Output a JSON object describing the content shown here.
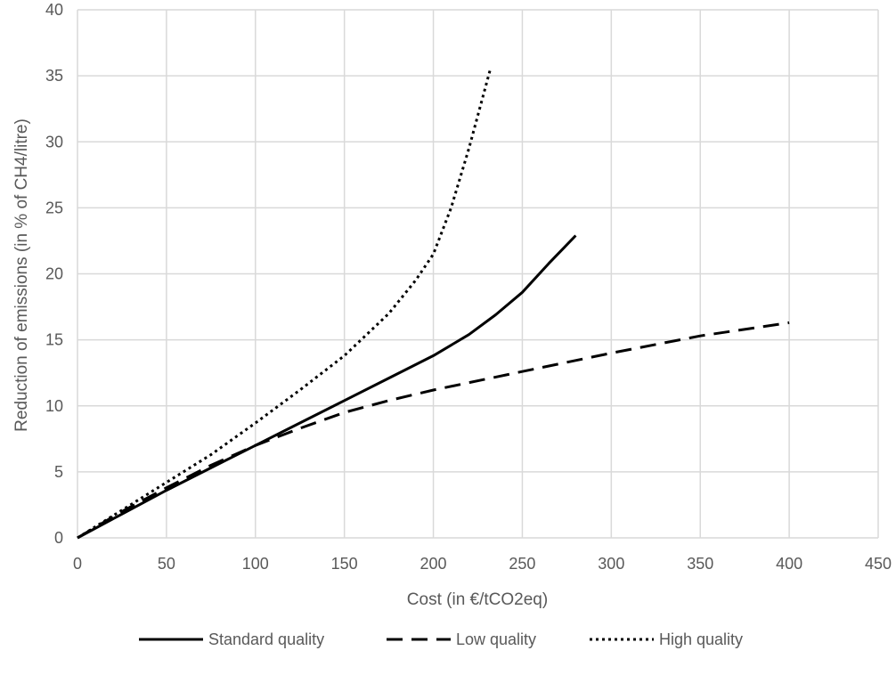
{
  "chart_data": {
    "type": "line",
    "title": "",
    "xlabel": "Cost (in €/tCO2eq)",
    "ylabel": "Reduction of emissions (in % of CH4/litre)",
    "xlim": [
      0,
      450
    ],
    "ylim": [
      0,
      40
    ],
    "x_ticks": [
      0,
      50,
      100,
      150,
      200,
      250,
      300,
      350,
      400,
      450
    ],
    "y_ticks": [
      0,
      5,
      10,
      15,
      20,
      25,
      30,
      35,
      40
    ],
    "grid": true,
    "legend_position": "bottom",
    "series": [
      {
        "name": "Standard quality",
        "style": "solid",
        "color": "#000000",
        "points": [
          [
            0,
            0
          ],
          [
            25,
            1.8
          ],
          [
            50,
            3.6
          ],
          [
            75,
            5.3
          ],
          [
            100,
            7.0
          ],
          [
            125,
            8.7
          ],
          [
            150,
            10.4
          ],
          [
            175,
            12.1
          ],
          [
            200,
            13.8
          ],
          [
            220,
            15.4
          ],
          [
            235,
            16.9
          ],
          [
            250,
            18.6
          ],
          [
            265,
            20.8
          ],
          [
            280,
            22.9
          ]
        ]
      },
      {
        "name": "Low quality",
        "style": "dashed",
        "color": "#000000",
        "points": [
          [
            0,
            0
          ],
          [
            25,
            2.0
          ],
          [
            50,
            3.8
          ],
          [
            75,
            5.5
          ],
          [
            100,
            7.0
          ],
          [
            125,
            8.3
          ],
          [
            150,
            9.5
          ],
          [
            175,
            10.4
          ],
          [
            200,
            11.2
          ],
          [
            250,
            12.6
          ],
          [
            300,
            14.0
          ],
          [
            350,
            15.3
          ],
          [
            400,
            16.3
          ]
        ]
      },
      {
        "name": "High quality",
        "style": "dotted",
        "color": "#000000",
        "points": [
          [
            0,
            0
          ],
          [
            25,
            2.1
          ],
          [
            50,
            4.2
          ],
          [
            75,
            6.3
          ],
          [
            100,
            8.7
          ],
          [
            125,
            11.2
          ],
          [
            150,
            13.8
          ],
          [
            175,
            17.0
          ],
          [
            190,
            19.5
          ],
          [
            200,
            21.5
          ],
          [
            210,
            25.0
          ],
          [
            220,
            29.5
          ],
          [
            232,
            35.5
          ]
        ]
      }
    ]
  }
}
